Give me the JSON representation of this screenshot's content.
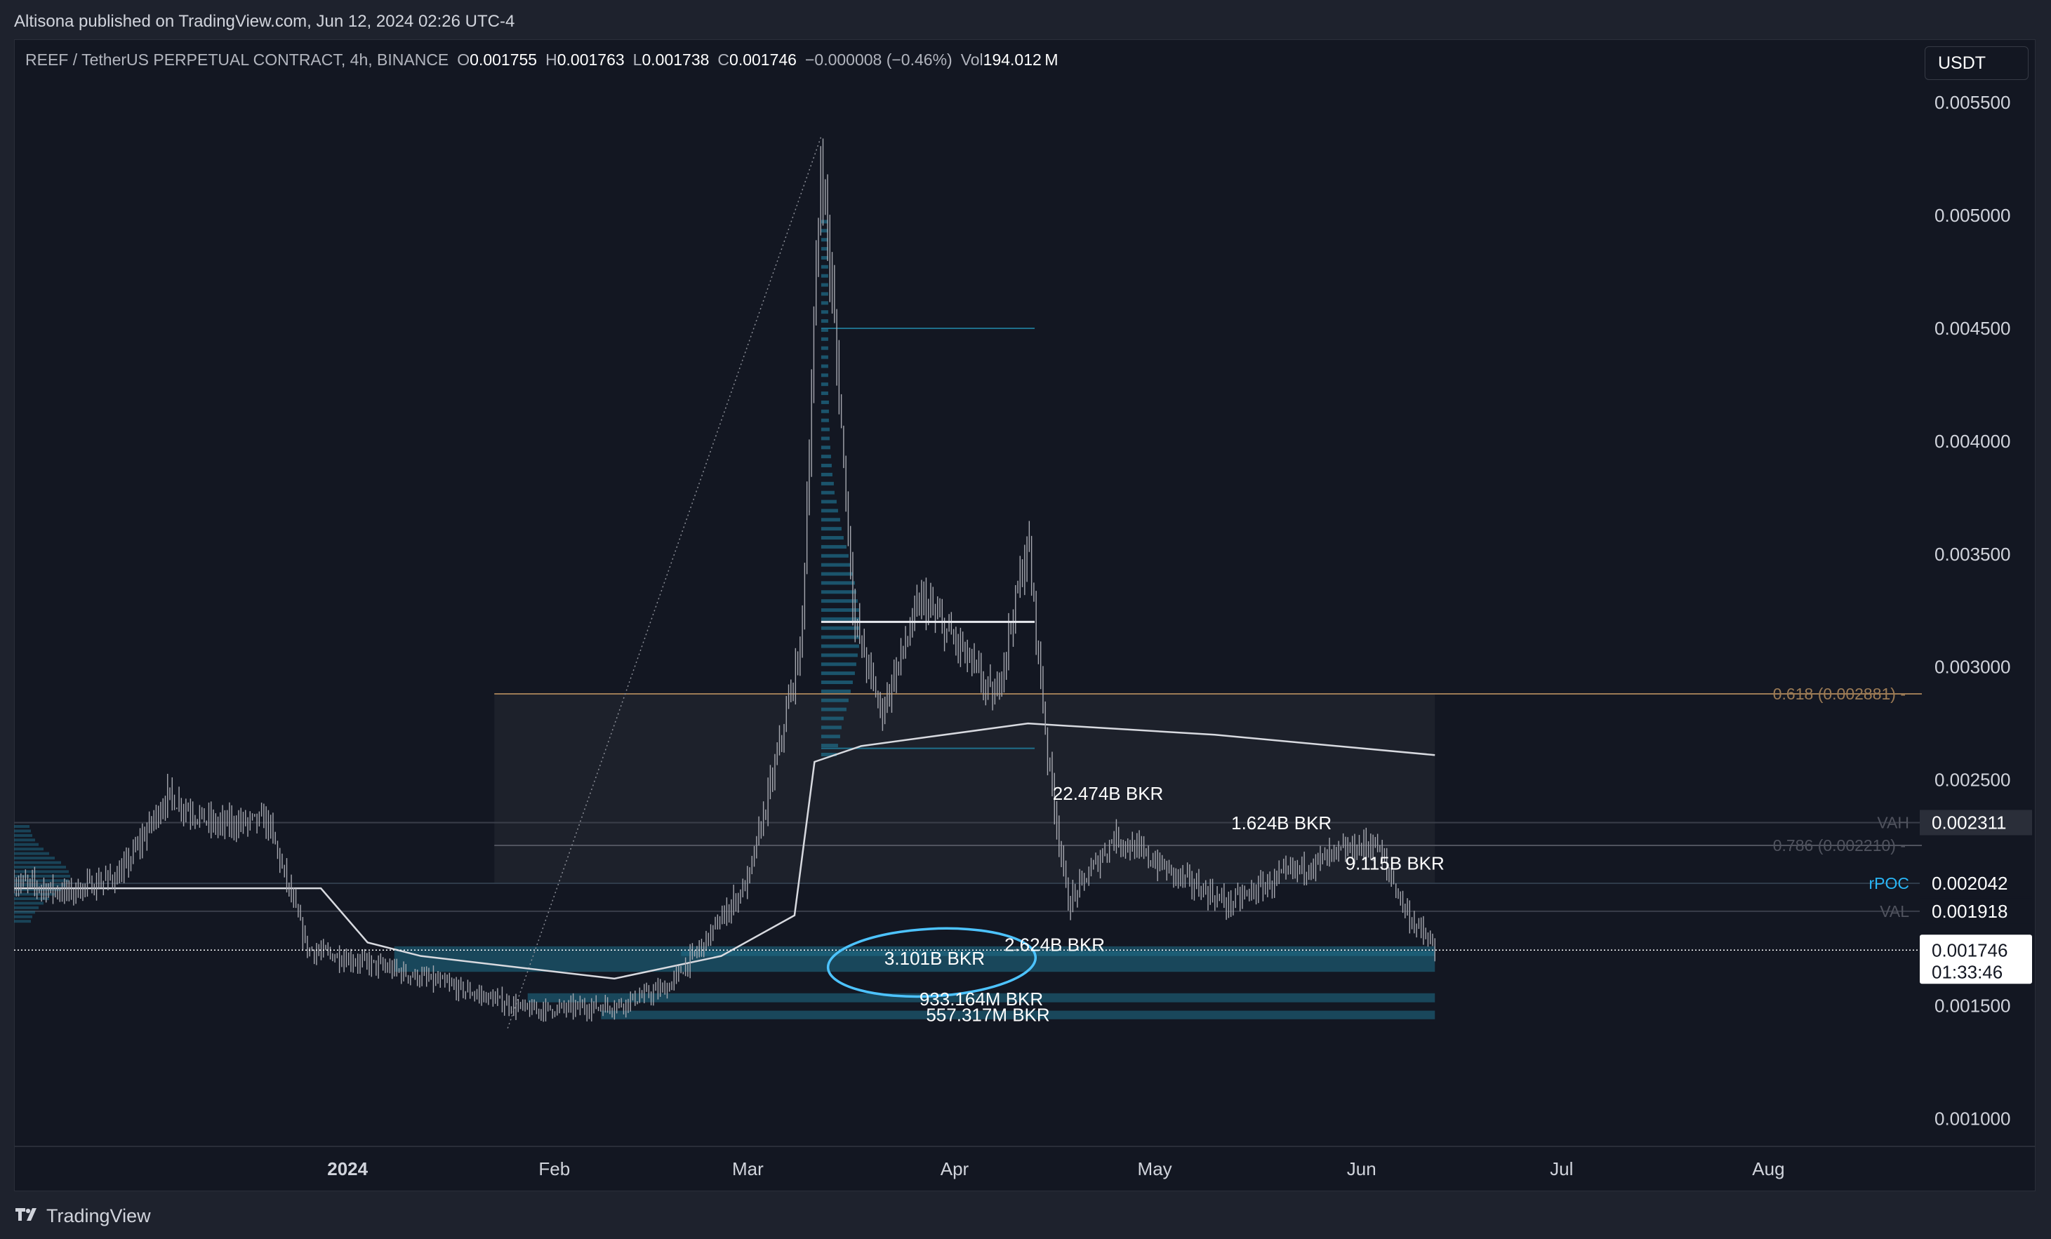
{
  "publish_line": "Altisona published on TradingView.com, Jun 12, 2024 02:26 UTC-4",
  "brand": "TradingView",
  "currency": "USDT",
  "legend": {
    "symbol": "REEF / TetherUS PERPETUAL CONTRACT, 4h, BINANCE",
    "open_key": "O",
    "open": "0.001755",
    "high_key": "H",
    "high": "0.001763",
    "low_key": "L",
    "low": "0.001738",
    "close_key": "C",
    "close": "0.001746",
    "change": "−0.000008 (−0.46%)",
    "vol_key": "Vol",
    "vol": "194.012 M"
  },
  "colors": {
    "background": "#131722",
    "candles": "#a6a8b0",
    "zone": "#1f6f8b",
    "fib": "#9c7b55",
    "rpoc": "#29b6f6",
    "circle": "#4dc3ff"
  },
  "chart_data": {
    "type": "candlestick",
    "title": "REEF / TetherUS PERPETUAL CONTRACT, 4h, BINANCE",
    "y_ticks": [
      "0.005500",
      "0.005000",
      "0.004500",
      "0.004000",
      "0.003500",
      "0.003000",
      "0.002500",
      "0.001500",
      "0.001000"
    ],
    "y_tick_values": [
      0.0055,
      0.005,
      0.0045,
      0.004,
      0.0035,
      0.003,
      0.0025,
      0.0015,
      0.001
    ],
    "ylim": [
      0.00088,
      0.00578
    ],
    "x_ticks": [
      "2024",
      "Feb",
      "Mar",
      "Apr",
      "May",
      "Jun",
      "Jul",
      "Aug"
    ],
    "x_tick_dates": [
      "2024-01-01",
      "2024-02-01",
      "2024-03-01",
      "2024-04-01",
      "2024-05-01",
      "2024-06-01",
      "2024-07-01",
      "2024-08-01"
    ],
    "xlim": [
      "2023-11-12",
      "2024-08-24"
    ],
    "price_path": [
      {
        "date": "2023-11-12",
        "price": 0.00205
      },
      {
        "date": "2023-11-20",
        "price": 0.002
      },
      {
        "date": "2023-11-28",
        "price": 0.00208
      },
      {
        "date": "2023-12-05",
        "price": 0.00243
      },
      {
        "date": "2023-12-12",
        "price": 0.0023
      },
      {
        "date": "2023-12-20",
        "price": 0.00232
      },
      {
        "date": "2023-12-26",
        "price": 0.00175
      },
      {
        "date": "2024-01-05",
        "price": 0.00168
      },
      {
        "date": "2024-01-15",
        "price": 0.0016
      },
      {
        "date": "2024-01-28",
        "price": 0.00148
      },
      {
        "date": "2024-02-10",
        "price": 0.0015
      },
      {
        "date": "2024-02-18",
        "price": 0.00158
      },
      {
        "date": "2024-02-24",
        "price": 0.0018
      },
      {
        "date": "2024-03-01",
        "price": 0.00205
      },
      {
        "date": "2024-03-05",
        "price": 0.00255
      },
      {
        "date": "2024-03-09",
        "price": 0.0031
      },
      {
        "date": "2024-03-12",
        "price": 0.00528
      },
      {
        "date": "2024-03-14",
        "price": 0.0045
      },
      {
        "date": "2024-03-17",
        "price": 0.0032
      },
      {
        "date": "2024-03-21",
        "price": 0.0028
      },
      {
        "date": "2024-03-27",
        "price": 0.0033
      },
      {
        "date": "2024-04-02",
        "price": 0.00308
      },
      {
        "date": "2024-04-07",
        "price": 0.00285
      },
      {
        "date": "2024-04-12",
        "price": 0.00355
      },
      {
        "date": "2024-04-15",
        "price": 0.0026
      },
      {
        "date": "2024-04-18",
        "price": 0.00195
      },
      {
        "date": "2024-04-25",
        "price": 0.00225
      },
      {
        "date": "2024-05-03",
        "price": 0.0021
      },
      {
        "date": "2024-05-12",
        "price": 0.00195
      },
      {
        "date": "2024-05-22",
        "price": 0.0021
      },
      {
        "date": "2024-05-29",
        "price": 0.00218
      },
      {
        "date": "2024-06-03",
        "price": 0.00222
      },
      {
        "date": "2024-06-08",
        "price": 0.0019
      },
      {
        "date": "2024-06-12",
        "price": 0.001746
      }
    ],
    "price_labels": [
      {
        "label": "VAH",
        "value": "0.002311",
        "price": 0.002311,
        "style": "grey"
      },
      {
        "label": "rPOC",
        "value": "0.002042",
        "price": 0.002042,
        "style": "blue"
      },
      {
        "label": "VAL",
        "value": "0.001918",
        "price": 0.001918,
        "style": "grey"
      },
      {
        "label": "",
        "value": "0.001746",
        "price": 0.001746,
        "countdown": "01:33:46",
        "style": "last"
      }
    ],
    "fib_levels": [
      {
        "label": "0.618 (0.002881)",
        "price": 0.002881
      },
      {
        "label": "0.786 (0.002210)",
        "price": 0.00221
      }
    ],
    "annotations": [
      {
        "text": "22.474B BKR",
        "date": "2024-04-24",
        "price": 0.00244
      },
      {
        "text": "1.624B BKR",
        "date": "2024-05-20",
        "price": 0.00231
      },
      {
        "text": "9.115B BKR",
        "date": "2024-06-06",
        "price": 0.00213
      },
      {
        "text": "2.624B BKR",
        "date": "2024-04-16",
        "price": 0.00177
      },
      {
        "text": "3.101B BKR",
        "date": "2024-03-29",
        "price": 0.00171
      },
      {
        "text": "933.164M BKR",
        "date": "2024-04-05",
        "price": 0.00153
      },
      {
        "text": "557.317M BKR",
        "date": "2024-04-06",
        "price": 0.00146
      }
    ],
    "zones": [
      {
        "from": "2024-01-08",
        "to": "2024-06-12",
        "low": 0.00165,
        "high": 0.001763
      },
      {
        "from": "2024-02-20",
        "to": "2024-06-12",
        "low": 0.00172,
        "high": 0.001742
      },
      {
        "from": "2024-01-28",
        "to": "2024-06-12",
        "low": 0.001515,
        "high": 0.001555
      },
      {
        "from": "2024-02-08",
        "to": "2024-06-12",
        "low": 0.00144,
        "high": 0.001478
      }
    ],
    "vwap_path": [
      {
        "date": "2023-11-12",
        "price": 0.00202
      },
      {
        "date": "2023-12-28",
        "price": 0.00202
      },
      {
        "date": "2024-01-04",
        "price": 0.00178
      },
      {
        "date": "2024-01-12",
        "price": 0.00172
      },
      {
        "date": "2024-02-10",
        "price": 0.00162
      },
      {
        "date": "2024-02-26",
        "price": 0.00172
      },
      {
        "date": "2024-03-08",
        "price": 0.0019
      },
      {
        "date": "2024-03-11",
        "price": 0.00258
      },
      {
        "date": "2024-03-18",
        "price": 0.00265
      },
      {
        "date": "2024-04-12",
        "price": 0.00275
      },
      {
        "date": "2024-05-10",
        "price": 0.0027
      },
      {
        "date": "2024-06-12",
        "price": 0.00261
      }
    ],
    "range_box": {
      "from": "2024-01-23",
      "to": "2024-06-12",
      "low": 0.00204,
      "high": 0.002881
    },
    "poc_line": {
      "from": "2024-03-12",
      "to": "2024-04-13",
      "price": 0.0032
    },
    "grid": false,
    "last_price": 0.001746
  }
}
